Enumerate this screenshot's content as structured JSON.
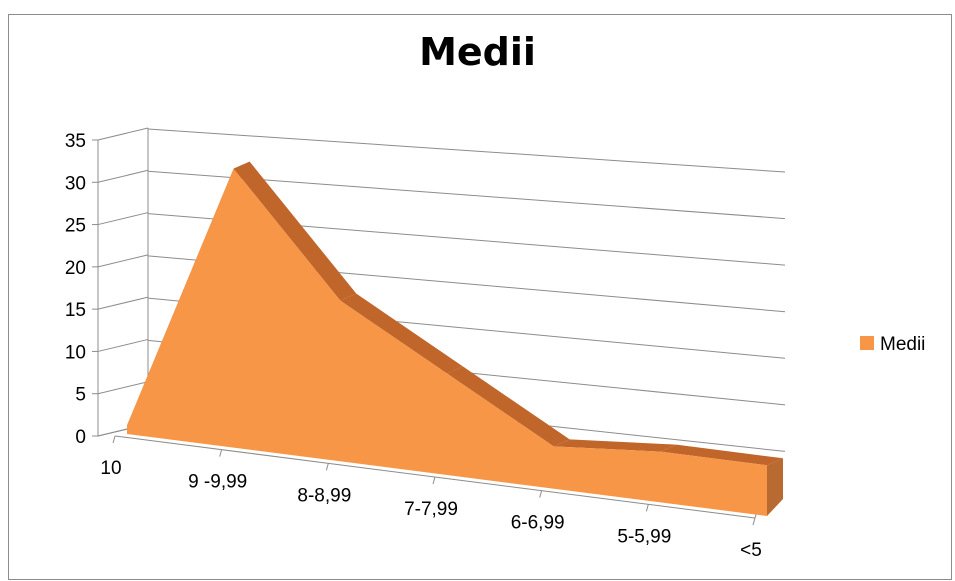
{
  "chart_data": {
    "type": "area",
    "title": "Medii",
    "categories": [
      "10",
      "9 -9,99",
      "8-8,99",
      "7-7,99",
      "6-6,99",
      "5-5,99",
      "<5"
    ],
    "series": [
      {
        "name": "Medii",
        "values": [
          1,
          33,
          19,
          12,
          5,
          6,
          6
        ]
      }
    ],
    "ylim": [
      0,
      35
    ],
    "yticks": [
      0,
      5,
      10,
      15,
      20,
      25,
      30,
      35
    ],
    "grid": true,
    "legend": "right",
    "colors": {
      "fill": "#f79646",
      "top": "#c0662b",
      "right_side": "#b86a30",
      "grid": "#8c8c8c",
      "border": "#8c8c8c"
    }
  }
}
